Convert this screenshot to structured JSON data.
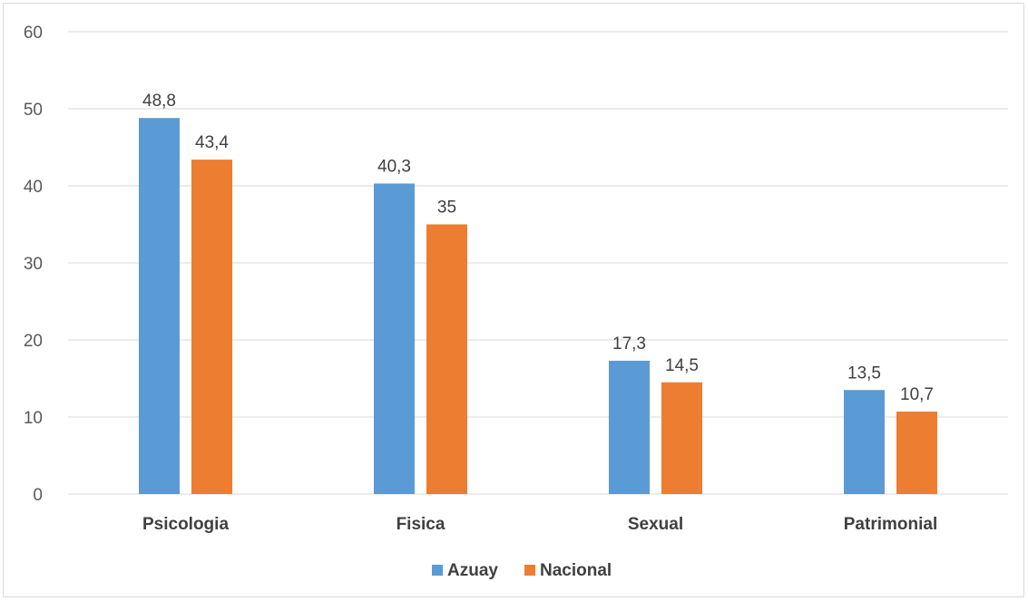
{
  "chart_data": {
    "type": "bar",
    "categories": [
      "Psicologia",
      "Fisica",
      "Sexual",
      "Patrimonial"
    ],
    "series": [
      {
        "name": "Azuay",
        "color": "#5B9BD5",
        "values": [
          48.8,
          40.3,
          17.3,
          13.5
        ],
        "labels": [
          "48,8",
          "40,3",
          "17,3",
          "13,5"
        ]
      },
      {
        "name": "Nacional",
        "color": "#ED7D31",
        "values": [
          43.4,
          35,
          14.5,
          10.7
        ],
        "labels": [
          "43,4",
          "35",
          "14,5",
          "10,7"
        ]
      }
    ],
    "ylim": [
      0,
      60
    ],
    "yticks": [
      0,
      10,
      20,
      30,
      40,
      50,
      60
    ],
    "grid": true,
    "legend": "bottom-center",
    "title": "",
    "xlabel": "",
    "ylabel": ""
  }
}
